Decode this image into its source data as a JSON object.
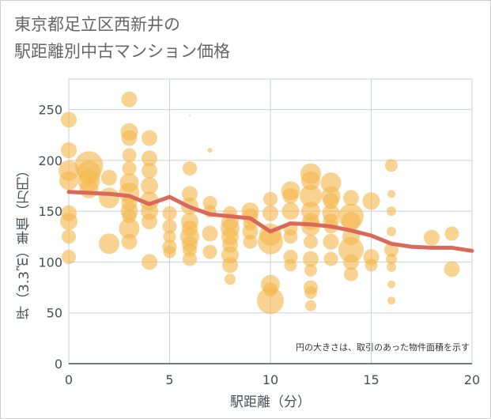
{
  "title": {
    "line1": "東京都足立区西新井の",
    "line2": "駅距離別中古マンション価格"
  },
  "note": "円の大きさは、取引のあった物件面積を示す",
  "chart_data": {
    "type": "scatter",
    "xlabel": "駅距離（分）",
    "ylabel": "坪（3.3㎡）単価（万円）",
    "xlim": [
      0,
      20
    ],
    "ylim": [
      0,
      280
    ],
    "xticks": [
      0,
      5,
      10,
      15,
      20
    ],
    "yticks": [
      0,
      50,
      100,
      150,
      200,
      250
    ],
    "grid": true,
    "colors": {
      "bubble": "#f3b84e",
      "line": "#d9695a"
    },
    "points": [
      [
        0,
        240,
        10
      ],
      [
        0,
        210,
        10
      ],
      [
        0,
        190,
        13
      ],
      [
        0,
        180,
        12
      ],
      [
        0,
        148,
        10
      ],
      [
        0,
        140,
        11
      ],
      [
        0,
        125,
        9
      ],
      [
        0,
        105,
        9
      ],
      [
        1,
        195,
        18
      ],
      [
        1,
        188,
        15
      ],
      [
        1,
        180,
        14
      ],
      [
        1,
        172,
        12
      ],
      [
        2,
        183,
        10
      ],
      [
        2,
        163,
        13
      ],
      [
        2,
        118,
        13
      ],
      [
        3,
        260,
        10
      ],
      [
        3,
        228,
        11
      ],
      [
        3,
        222,
        10
      ],
      [
        3,
        205,
        9
      ],
      [
        3,
        192,
        9
      ],
      [
        3,
        178,
        12
      ],
      [
        3,
        168,
        13
      ],
      [
        3,
        158,
        10
      ],
      [
        3,
        150,
        11
      ],
      [
        3,
        145,
        9
      ],
      [
        3,
        133,
        13
      ],
      [
        3,
        120,
        10
      ],
      [
        4,
        222,
        10
      ],
      [
        4,
        202,
        10
      ],
      [
        4,
        190,
        10
      ],
      [
        4,
        175,
        11
      ],
      [
        4,
        160,
        12
      ],
      [
        4,
        150,
        11
      ],
      [
        4,
        140,
        10
      ],
      [
        4,
        100,
        10
      ],
      [
        5,
        148,
        9
      ],
      [
        5,
        135,
        9
      ],
      [
        5,
        125,
        8
      ],
      [
        5,
        115,
        9
      ],
      [
        5,
        110,
        8
      ],
      [
        6,
        244,
        1
      ],
      [
        6,
        192,
        9
      ],
      [
        6,
        167,
        10
      ],
      [
        6,
        155,
        11
      ],
      [
        6,
        140,
        11
      ],
      [
        6,
        133,
        10
      ],
      [
        6,
        125,
        12
      ],
      [
        6,
        118,
        10
      ],
      [
        6,
        112,
        9
      ],
      [
        6,
        103,
        9
      ],
      [
        7,
        210,
        3
      ],
      [
        7,
        158,
        9
      ],
      [
        7,
        150,
        8
      ],
      [
        7,
        128,
        10
      ],
      [
        7,
        110,
        9
      ],
      [
        8,
        148,
        9
      ],
      [
        8,
        140,
        11
      ],
      [
        8,
        133,
        12
      ],
      [
        8,
        125,
        11
      ],
      [
        8,
        117,
        10
      ],
      [
        8,
        107,
        11
      ],
      [
        8,
        97,
        10
      ],
      [
        8,
        83,
        7
      ],
      [
        9,
        150,
        11
      ],
      [
        9,
        145,
        10
      ],
      [
        9,
        138,
        9
      ],
      [
        9,
        130,
        10
      ],
      [
        9,
        120,
        9
      ],
      [
        10,
        162,
        9
      ],
      [
        10,
        148,
        10
      ],
      [
        10,
        127,
        14
      ],
      [
        10,
        120,
        16
      ],
      [
        10,
        78,
        12
      ],
      [
        10,
        73,
        9
      ],
      [
        10,
        62,
        17
      ],
      [
        11,
        170,
        12
      ],
      [
        11,
        165,
        10
      ],
      [
        11,
        150,
        11
      ],
      [
        11,
        133,
        9
      ],
      [
        11,
        125,
        9
      ],
      [
        11,
        105,
        9
      ],
      [
        11,
        97,
        8
      ],
      [
        12,
        187,
        13
      ],
      [
        12,
        180,
        12
      ],
      [
        12,
        165,
        14
      ],
      [
        12,
        150,
        12
      ],
      [
        12,
        140,
        11
      ],
      [
        12,
        135,
        12
      ],
      [
        12,
        120,
        9
      ],
      [
        12,
        103,
        10
      ],
      [
        12,
        92,
        8
      ],
      [
        12,
        75,
        9
      ],
      [
        12,
        70,
        8
      ],
      [
        12,
        57,
        7
      ],
      [
        13,
        178,
        13
      ],
      [
        13,
        165,
        12
      ],
      [
        13,
        160,
        10
      ],
      [
        13,
        148,
        11
      ],
      [
        13,
        140,
        10
      ],
      [
        13,
        135,
        9
      ],
      [
        13,
        120,
        10
      ],
      [
        13,
        103,
        9
      ],
      [
        14,
        163,
        10
      ],
      [
        14,
        145,
        16
      ],
      [
        14,
        140,
        12
      ],
      [
        14,
        125,
        11
      ],
      [
        14,
        112,
        16
      ],
      [
        14,
        100,
        10
      ],
      [
        14,
        88,
        9
      ],
      [
        15,
        160,
        11
      ],
      [
        15,
        105,
        10
      ],
      [
        15,
        97,
        8
      ],
      [
        16,
        195,
        8
      ],
      [
        16,
        167,
        5
      ],
      [
        16,
        150,
        6
      ],
      [
        16,
        130,
        6
      ],
      [
        16,
        112,
        9
      ],
      [
        16,
        103,
        7
      ],
      [
        16,
        95,
        6
      ],
      [
        16,
        78,
        5
      ],
      [
        16,
        62,
        5
      ],
      [
        18,
        124,
        10
      ],
      [
        19,
        128,
        9
      ],
      [
        19,
        93,
        10
      ]
    ],
    "trend": {
      "x": [
        0,
        1,
        2,
        3,
        4,
        5,
        6,
        7,
        8,
        9,
        10,
        11,
        12,
        13,
        14,
        15,
        16,
        17,
        18,
        19,
        20
      ],
      "y": [
        169,
        168,
        167,
        165,
        157,
        164,
        154,
        147,
        145,
        143,
        130,
        138,
        137,
        135,
        131,
        126,
        118,
        115,
        114,
        114,
        111
      ]
    }
  }
}
